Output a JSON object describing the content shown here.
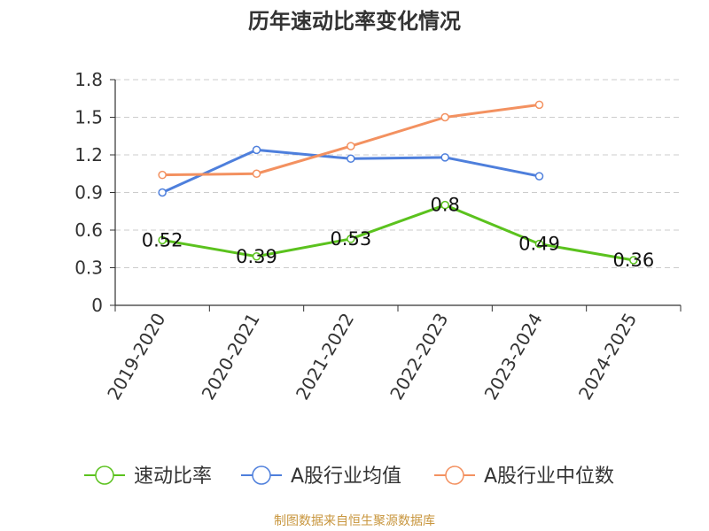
{
  "chart_data": {
    "type": "line",
    "title": "历年速动比率变化情况",
    "categories": [
      "2019-2020",
      "2020-2021",
      "2021-2022",
      "2022-2023",
      "2023-2024",
      "2024-2025"
    ],
    "series": [
      {
        "name": "速动比率",
        "color": "#5bc21e",
        "values": [
          0.52,
          0.39,
          0.53,
          0.8,
          0.49,
          0.36
        ],
        "labels": [
          "0.52",
          "0.39",
          "0.53",
          "0.8",
          "0.49",
          "0.36"
        ]
      },
      {
        "name": "A股行业均值",
        "color": "#4e7fdc",
        "values": [
          0.9,
          1.24,
          1.17,
          1.18,
          1.03,
          null
        ]
      },
      {
        "name": "A股行业中位数",
        "color": "#f39160",
        "values": [
          1.04,
          1.05,
          1.27,
          1.5,
          1.6,
          null
        ]
      }
    ],
    "ylim": [
      0,
      1.8
    ],
    "yticks": [
      "0",
      "0.3",
      "0.6",
      "0.9",
      "1.2",
      "1.5",
      "1.8"
    ],
    "ytick_values": [
      0,
      0.3,
      0.6,
      0.9,
      1.2,
      1.5,
      1.8
    ],
    "grid": true,
    "legend_position": "bottom"
  },
  "source": {
    "text": "制图数据来自恒生聚源数据库",
    "color": "#c8963e"
  }
}
